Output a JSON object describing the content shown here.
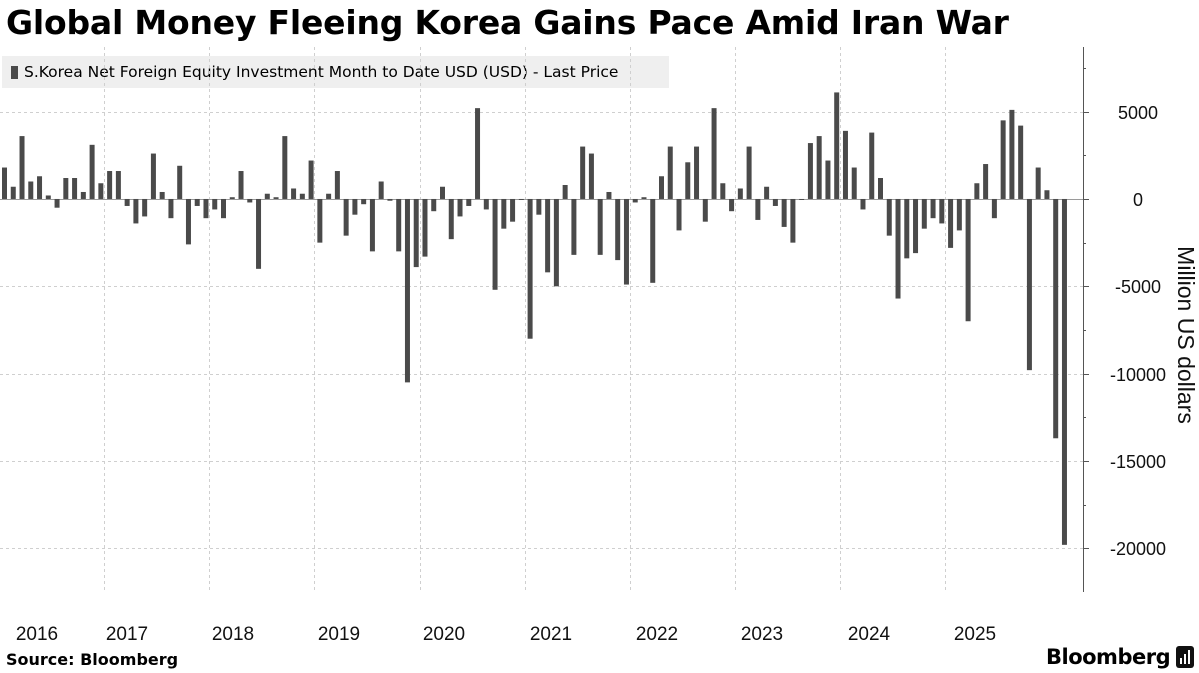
{
  "colors": {
    "bar": "#4a4a4a",
    "grid": "#cfcfcf",
    "axis": "#555555"
  },
  "footer": {
    "source": "Source: Bloomberg",
    "brand": "Bloomberg",
    "brand_icon": "bloomberg-terminal-icon"
  },
  "chart_data": {
    "type": "bar",
    "title": "Global Money Fleeing Korea Gains Pace Amid Iran War",
    "legend": [
      "S.Korea Net Foreign Equity Investment Month to Date USD (USD) - Last Price"
    ],
    "xlabel": "",
    "ylabel": "Million US dollars",
    "ylim": [
      -22500,
      8700
    ],
    "yticks": [
      5000,
      0,
      -5000,
      -10000,
      -15000,
      -20000
    ],
    "ytick_labels": [
      "5000",
      "0",
      "-5000",
      "-10000",
      "-15000",
      "-20000"
    ],
    "x_tick_labels": [
      "2016",
      "2017",
      "2018",
      "2019",
      "2020",
      "2021",
      "2022",
      "2023",
      "2024",
      "2025"
    ],
    "x_grid_years": [
      "2016",
      "2017",
      "2018",
      "2019",
      "2020",
      "2021",
      "2022",
      "2023",
      "2024",
      "2025"
    ],
    "start_month": "2016-01",
    "values": [
      1800,
      700,
      3600,
      1000,
      1300,
      200,
      -500,
      1200,
      1200,
      400,
      3100,
      900,
      1600,
      1600,
      -400,
      -1400,
      -1000,
      2600,
      400,
      -1100,
      1900,
      -2600,
      -400,
      -1100,
      -600,
      -1100,
      100,
      1600,
      -200,
      -4000,
      300,
      100,
      3600,
      600,
      300,
      2200,
      -2500,
      300,
      1600,
      -2100,
      -900,
      -300,
      -3000,
      1000,
      -100,
      -3000,
      -10500,
      -3900,
      -3300,
      -700,
      700,
      -2300,
      -1000,
      -400,
      5200,
      -600,
      -5200,
      -1700,
      -1300,
      0,
      -8000,
      -900,
      -4200,
      -5000,
      800,
      -3200,
      3000,
      2600,
      -3200,
      400,
      -3500,
      -4900,
      -200,
      100,
      -4800,
      1300,
      3000,
      -1800,
      2100,
      3000,
      -1300,
      5200,
      900,
      -700,
      600,
      3000,
      -1200,
      700,
      -400,
      -1600,
      -2500,
      0,
      3200,
      3600,
      2200,
      6100,
      3900,
      1800,
      -600,
      3800,
      1200,
      -2100,
      -5700,
      -3400,
      -3100,
      -1700,
      -1100,
      -1400,
      -2800,
      -1800,
      -7000,
      900,
      2000,
      -1100,
      4500,
      5100,
      4200,
      -9800,
      1800,
      500,
      -13700,
      -19800
    ]
  }
}
